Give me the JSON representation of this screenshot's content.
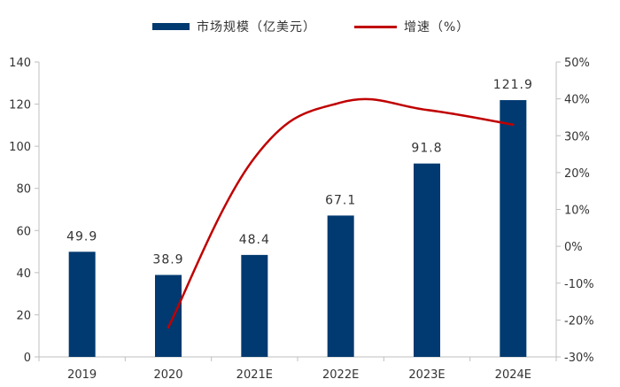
{
  "chart_data": {
    "type": "bar",
    "categories": [
      "2019",
      "2020",
      "2021E",
      "2022E",
      "2023E",
      "2024E"
    ],
    "series": [
      {
        "name": "市场规模（亿美元）",
        "type": "bar",
        "axis": "left",
        "values": [
          49.9,
          38.9,
          48.4,
          67.1,
          91.8,
          121.9
        ],
        "data_labels": [
          "49.9",
          "38.9",
          "48.4",
          "67.1",
          "91.8",
          "121.9"
        ],
        "color": "#003a70"
      },
      {
        "name": "增速（%）",
        "type": "line",
        "axis": "right",
        "x": [
          "2020",
          "2021E",
          "2022E",
          "2023E",
          "2024E"
        ],
        "values": [
          -22,
          24,
          39,
          37,
          33
        ],
        "color": "#c00000"
      }
    ],
    "left_axis": {
      "ylim": [
        0,
        140
      ],
      "ticks": [
        0,
        20,
        40,
        60,
        80,
        100,
        120,
        140
      ],
      "tick_labels": [
        "0",
        "20",
        "40",
        "60",
        "80",
        "100",
        "120",
        "140"
      ]
    },
    "right_axis": {
      "ylim": [
        -30,
        50
      ],
      "ticks": [
        -30,
        -20,
        -10,
        0,
        10,
        20,
        30,
        40,
        50
      ],
      "tick_labels": [
        "-30%",
        "-20%",
        "-10%",
        "0%",
        "10%",
        "20%",
        "30%",
        "40%",
        "50%"
      ]
    },
    "grid": false,
    "legend": "top-center",
    "title": "",
    "xlabel": "",
    "ylabel": ""
  }
}
